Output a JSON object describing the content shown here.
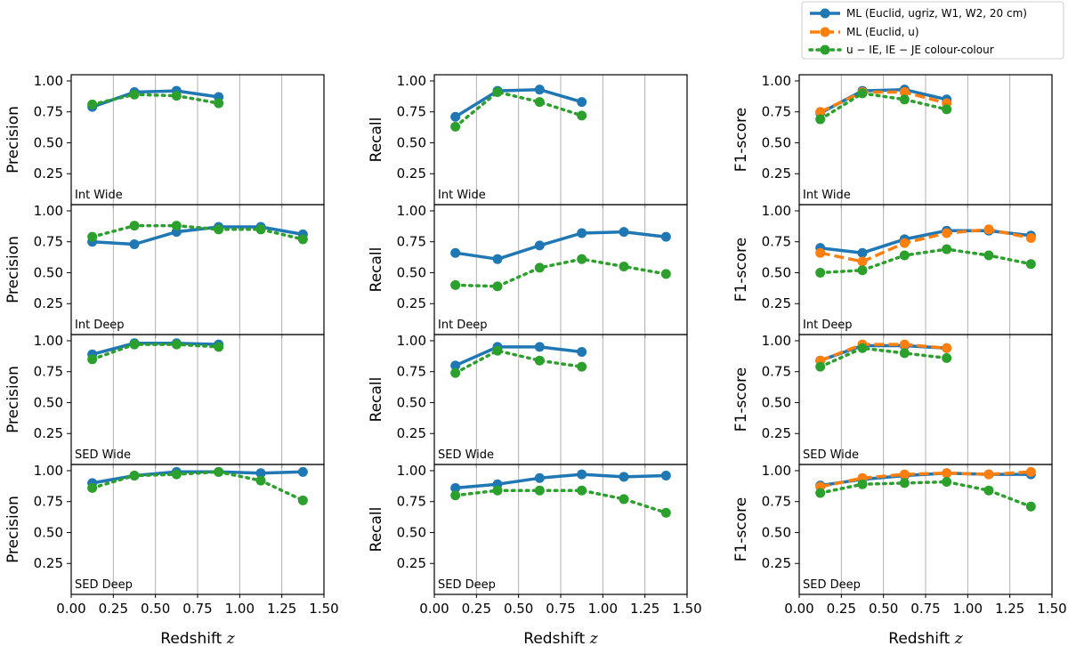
{
  "figure": {
    "x_label_text": "Redshift",
    "x_label_symbol": "z"
  },
  "colors": {
    "ml_full": "#1f77b4",
    "ml_u": "#ff7f0e",
    "colour_colour": "#2ca02c",
    "grid": "#b0b0b0"
  },
  "legend": {
    "location": "top-right",
    "entries": [
      {
        "key": "ml_full",
        "text": "ML (Euclid, ugriz, W1, W2, 20 cm)",
        "style": "solid"
      },
      {
        "key": "ml_u",
        "text": "ML (Euclid, u)",
        "style": "dashed"
      },
      {
        "key": "colour_colour",
        "text": "u − IE, IE − JE colour-colour",
        "style": "dotted"
      }
    ]
  },
  "chart_data": [
    {
      "type": "line",
      "row": 0,
      "col": 0,
      "metric": "Precision",
      "sample": "Int Wide",
      "xlim": [
        0,
        1.5
      ],
      "ylim": [
        0,
        1.05
      ],
      "series": [
        {
          "key": "ml_full",
          "x": [
            0.125,
            0.375,
            0.625,
            0.875
          ],
          "values": [
            0.79,
            0.91,
            0.92,
            0.87
          ]
        },
        {
          "key": "colour_colour",
          "x": [
            0.125,
            0.375,
            0.625,
            0.875
          ],
          "values": [
            0.81,
            0.89,
            0.88,
            0.82
          ]
        }
      ]
    },
    {
      "type": "line",
      "row": 0,
      "col": 1,
      "metric": "Recall",
      "sample": "Int Wide",
      "xlim": [
        0,
        1.5
      ],
      "ylim": [
        0,
        1.05
      ],
      "series": [
        {
          "key": "ml_full",
          "x": [
            0.125,
            0.375,
            0.625,
            0.875
          ],
          "values": [
            0.71,
            0.92,
            0.93,
            0.83
          ]
        },
        {
          "key": "colour_colour",
          "x": [
            0.125,
            0.375,
            0.625,
            0.875
          ],
          "values": [
            0.63,
            0.91,
            0.83,
            0.72
          ]
        }
      ]
    },
    {
      "type": "line",
      "row": 0,
      "col": 2,
      "metric": "F1-score",
      "sample": "Int Wide",
      "xlim": [
        0,
        1.5
      ],
      "ylim": [
        0,
        1.05
      ],
      "series": [
        {
          "key": "ml_full",
          "x": [
            0.125,
            0.375,
            0.625,
            0.875
          ],
          "values": [
            0.74,
            0.92,
            0.93,
            0.85
          ]
        },
        {
          "key": "ml_u",
          "x": [
            0.125,
            0.375,
            0.625,
            0.875
          ],
          "values": [
            0.75,
            0.91,
            0.91,
            0.82
          ]
        },
        {
          "key": "colour_colour",
          "x": [
            0.125,
            0.375,
            0.625,
            0.875
          ],
          "values": [
            0.69,
            0.9,
            0.85,
            0.77
          ]
        }
      ]
    },
    {
      "type": "line",
      "row": 1,
      "col": 0,
      "metric": "Precision",
      "sample": "Int Deep",
      "xlim": [
        0,
        1.5
      ],
      "ylim": [
        0,
        1.05
      ],
      "series": [
        {
          "key": "ml_full",
          "x": [
            0.125,
            0.375,
            0.625,
            0.875,
            1.125,
            1.375
          ],
          "values": [
            0.75,
            0.73,
            0.83,
            0.87,
            0.87,
            0.81
          ]
        },
        {
          "key": "colour_colour",
          "x": [
            0.125,
            0.375,
            0.625,
            0.875,
            1.125,
            1.375
          ],
          "values": [
            0.79,
            0.88,
            0.88,
            0.85,
            0.85,
            0.77
          ]
        }
      ]
    },
    {
      "type": "line",
      "row": 1,
      "col": 1,
      "metric": "Recall",
      "sample": "Int Deep",
      "xlim": [
        0,
        1.5
      ],
      "ylim": [
        0,
        1.05
      ],
      "series": [
        {
          "key": "ml_full",
          "x": [
            0.125,
            0.375,
            0.625,
            0.875,
            1.125,
            1.375
          ],
          "values": [
            0.66,
            0.61,
            0.72,
            0.82,
            0.83,
            0.79
          ]
        },
        {
          "key": "colour_colour",
          "x": [
            0.125,
            0.375,
            0.625,
            0.875,
            1.125,
            1.375
          ],
          "values": [
            0.4,
            0.39,
            0.54,
            0.61,
            0.55,
            0.49
          ]
        }
      ]
    },
    {
      "type": "line",
      "row": 1,
      "col": 2,
      "metric": "F1-score",
      "sample": "Int Deep",
      "xlim": [
        0,
        1.5
      ],
      "ylim": [
        0,
        1.05
      ],
      "series": [
        {
          "key": "ml_full",
          "x": [
            0.125,
            0.375,
            0.625,
            0.875,
            1.125,
            1.375
          ],
          "values": [
            0.7,
            0.66,
            0.77,
            0.84,
            0.84,
            0.8
          ]
        },
        {
          "key": "ml_u",
          "x": [
            0.125,
            0.375,
            0.625,
            0.875,
            1.125,
            1.375
          ],
          "values": [
            0.66,
            0.59,
            0.74,
            0.82,
            0.85,
            0.78
          ]
        },
        {
          "key": "colour_colour",
          "x": [
            0.125,
            0.375,
            0.625,
            0.875,
            1.125,
            1.375
          ],
          "values": [
            0.5,
            0.52,
            0.64,
            0.69,
            0.64,
            0.57
          ]
        }
      ]
    },
    {
      "type": "line",
      "row": 2,
      "col": 0,
      "metric": "Precision",
      "sample": "SED Wide",
      "xlim": [
        0,
        1.5
      ],
      "ylim": [
        0,
        1.05
      ],
      "series": [
        {
          "key": "ml_full",
          "x": [
            0.125,
            0.375,
            0.625,
            0.875
          ],
          "values": [
            0.89,
            0.98,
            0.98,
            0.97
          ]
        },
        {
          "key": "colour_colour",
          "x": [
            0.125,
            0.375,
            0.625,
            0.875
          ],
          "values": [
            0.85,
            0.97,
            0.97,
            0.95
          ]
        }
      ]
    },
    {
      "type": "line",
      "row": 2,
      "col": 1,
      "metric": "Recall",
      "sample": "SED Wide",
      "xlim": [
        0,
        1.5
      ],
      "ylim": [
        0,
        1.05
      ],
      "series": [
        {
          "key": "ml_full",
          "x": [
            0.125,
            0.375,
            0.625,
            0.875
          ],
          "values": [
            0.8,
            0.95,
            0.95,
            0.91
          ]
        },
        {
          "key": "colour_colour",
          "x": [
            0.125,
            0.375,
            0.625,
            0.875
          ],
          "values": [
            0.74,
            0.92,
            0.84,
            0.79
          ]
        }
      ]
    },
    {
      "type": "line",
      "row": 2,
      "col": 2,
      "metric": "F1-score",
      "sample": "SED Wide",
      "xlim": [
        0,
        1.5
      ],
      "ylim": [
        0,
        1.05
      ],
      "series": [
        {
          "key": "ml_full",
          "x": [
            0.125,
            0.375,
            0.625,
            0.875
          ],
          "values": [
            0.84,
            0.96,
            0.96,
            0.94
          ]
        },
        {
          "key": "ml_u",
          "x": [
            0.125,
            0.375,
            0.625,
            0.875
          ],
          "values": [
            0.84,
            0.97,
            0.97,
            0.94
          ]
        },
        {
          "key": "colour_colour",
          "x": [
            0.125,
            0.375,
            0.625,
            0.875
          ],
          "values": [
            0.79,
            0.94,
            0.9,
            0.86
          ]
        }
      ]
    },
    {
      "type": "line",
      "row": 3,
      "col": 0,
      "metric": "Precision",
      "sample": "SED Deep",
      "xlim": [
        0,
        1.5
      ],
      "ylim": [
        0,
        1.05
      ],
      "series": [
        {
          "key": "ml_full",
          "x": [
            0.125,
            0.375,
            0.625,
            0.875,
            1.125,
            1.375
          ],
          "values": [
            0.9,
            0.96,
            0.99,
            0.99,
            0.98,
            0.99
          ]
        },
        {
          "key": "colour_colour",
          "x": [
            0.125,
            0.375,
            0.625,
            0.875,
            1.125,
            1.375
          ],
          "values": [
            0.86,
            0.96,
            0.97,
            0.99,
            0.92,
            0.76
          ]
        }
      ]
    },
    {
      "type": "line",
      "row": 3,
      "col": 1,
      "metric": "Recall",
      "sample": "SED Deep",
      "xlim": [
        0,
        1.5
      ],
      "ylim": [
        0,
        1.05
      ],
      "series": [
        {
          "key": "ml_full",
          "x": [
            0.125,
            0.375,
            0.625,
            0.875,
            1.125,
            1.375
          ],
          "values": [
            0.86,
            0.89,
            0.94,
            0.97,
            0.95,
            0.96
          ]
        },
        {
          "key": "colour_colour",
          "x": [
            0.125,
            0.375,
            0.625,
            0.875,
            1.125,
            1.375
          ],
          "values": [
            0.8,
            0.84,
            0.84,
            0.84,
            0.77,
            0.66
          ]
        }
      ]
    },
    {
      "type": "line",
      "row": 3,
      "col": 2,
      "metric": "F1-score",
      "sample": "SED Deep",
      "xlim": [
        0,
        1.5
      ],
      "ylim": [
        0,
        1.05
      ],
      "series": [
        {
          "key": "ml_full",
          "x": [
            0.125,
            0.375,
            0.625,
            0.875,
            1.125,
            1.375
          ],
          "values": [
            0.88,
            0.93,
            0.96,
            0.98,
            0.97,
            0.97
          ]
        },
        {
          "key": "ml_u",
          "x": [
            0.125,
            0.375,
            0.625,
            0.875,
            1.125,
            1.375
          ],
          "values": [
            0.87,
            0.94,
            0.97,
            0.98,
            0.97,
            0.99
          ]
        },
        {
          "key": "colour_colour",
          "x": [
            0.125,
            0.375,
            0.625,
            0.875,
            1.125,
            1.375
          ],
          "values": [
            0.82,
            0.89,
            0.9,
            0.91,
            0.84,
            0.71
          ]
        }
      ]
    }
  ]
}
